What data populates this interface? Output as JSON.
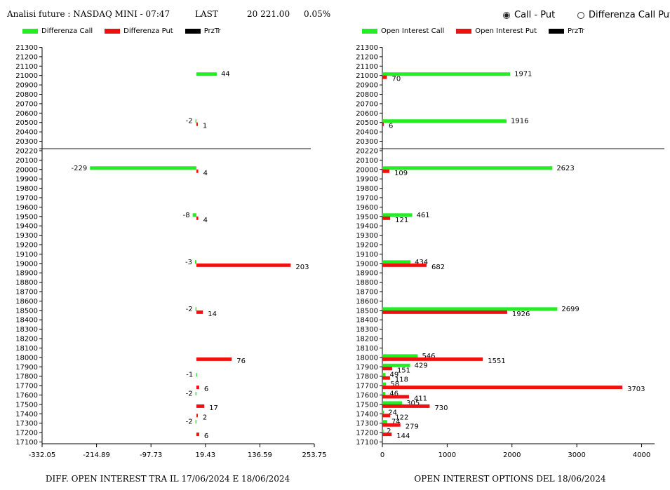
{
  "header": {
    "title": "Analisi future : NASDAQ MINI - 07:47",
    "last_label": "LAST",
    "last_value": "20 221.00",
    "change": "0.05%"
  },
  "radio": {
    "options": [
      {
        "label": "Call - Put",
        "selected": true
      },
      {
        "label": "Differenza Call Put",
        "selected": false
      }
    ]
  },
  "colors": {
    "call": "#22ee22",
    "put": "#ee1111",
    "price": "#000000"
  },
  "chart_data": [
    {
      "type": "bar",
      "orientation": "horizontal",
      "title": "DIFF. OPEN INTEREST TRA IL 17/06/2024 E 18/06/2024",
      "legend": [
        "Differenza Call",
        "Differenza Put",
        "PrzTr"
      ],
      "categories": [
        21300,
        21200,
        21100,
        21000,
        20900,
        20800,
        20700,
        20600,
        20500,
        20400,
        20300,
        20200,
        20100,
        20000,
        19900,
        19800,
        19700,
        19600,
        19500,
        19400,
        19300,
        19200,
        19100,
        19000,
        18900,
        18800,
        18700,
        18600,
        18500,
        18400,
        18300,
        18200,
        18100,
        18000,
        17900,
        17800,
        17700,
        17600,
        17500,
        17400,
        17300,
        17200,
        17100
      ],
      "x_ticks": [
        "-332.05",
        "-214.89",
        "-97.73",
        "19.43",
        "136.59",
        "253.75"
      ],
      "xlim": [
        -332.05,
        253.75
      ],
      "price_level": 20221,
      "price_tick_label": "20220",
      "series": [
        {
          "name": "Differenza Call",
          "points": [
            {
              "strike": 21000,
              "value": 44
            },
            {
              "strike": 20500,
              "value": -2
            },
            {
              "strike": 20000,
              "value": -229
            },
            {
              "strike": 19500,
              "value": -8
            },
            {
              "strike": 19000,
              "value": -3
            },
            {
              "strike": 18500,
              "value": -2
            },
            {
              "strike": 17800,
              "value": -1
            },
            {
              "strike": 17600,
              "value": -2
            },
            {
              "strike": 17300,
              "value": -2
            }
          ]
        },
        {
          "name": "Differenza Put",
          "points": [
            {
              "strike": 20500,
              "value": 1
            },
            {
              "strike": 20000,
              "value": 4
            },
            {
              "strike": 19500,
              "value": 4
            },
            {
              "strike": 19000,
              "value": 203
            },
            {
              "strike": 18500,
              "value": 14
            },
            {
              "strike": 18000,
              "value": 76
            },
            {
              "strike": 17700,
              "value": 6
            },
            {
              "strike": 17500,
              "value": 17
            },
            {
              "strike": 17400,
              "value": 2
            },
            {
              "strike": 17200,
              "value": 6
            }
          ]
        }
      ]
    },
    {
      "type": "bar",
      "orientation": "horizontal",
      "title": "OPEN INTEREST OPTIONS DEL 18/06/2024",
      "legend": [
        "Open Interest Call",
        "Open Interest Put",
        "PrzTr"
      ],
      "categories": [
        21300,
        21200,
        21100,
        21000,
        20900,
        20800,
        20700,
        20600,
        20500,
        20400,
        20300,
        20200,
        20100,
        20000,
        19900,
        19800,
        19700,
        19600,
        19500,
        19400,
        19300,
        19200,
        19100,
        19000,
        18900,
        18800,
        18700,
        18600,
        18500,
        18400,
        18300,
        18200,
        18100,
        18000,
        17900,
        17800,
        17700,
        17600,
        17500,
        17400,
        17300,
        17200,
        17100
      ],
      "x_ticks": [
        "0",
        "1000",
        "2000",
        "3000",
        "4000"
      ],
      "xlim": [
        0,
        4200
      ],
      "price_level": 20221,
      "price_tick_label": "20220",
      "series": [
        {
          "name": "Open Interest Call",
          "points": [
            {
              "strike": 21000,
              "value": 1971
            },
            {
              "strike": 20500,
              "value": 1916
            },
            {
              "strike": 20000,
              "value": 2623
            },
            {
              "strike": 19500,
              "value": 461
            },
            {
              "strike": 19000,
              "value": 434
            },
            {
              "strike": 18500,
              "value": 2699
            },
            {
              "strike": 18000,
              "value": 546
            },
            {
              "strike": 17900,
              "value": 429
            },
            {
              "strike": 17800,
              "value": 49
            },
            {
              "strike": 17700,
              "value": 58
            },
            {
              "strike": 17600,
              "value": 46
            },
            {
              "strike": 17500,
              "value": 305
            },
            {
              "strike": 17400,
              "value": 24
            },
            {
              "strike": 17300,
              "value": 74
            },
            {
              "strike": 17200,
              "value": 2
            }
          ]
        },
        {
          "name": "Open Interest Put",
          "points": [
            {
              "strike": 21000,
              "value": 70
            },
            {
              "strike": 20500,
              "value": 6
            },
            {
              "strike": 20000,
              "value": 109
            },
            {
              "strike": 19500,
              "value": 121
            },
            {
              "strike": 19000,
              "value": 682
            },
            {
              "strike": 18500,
              "value": 1926
            },
            {
              "strike": 18000,
              "value": 1551
            },
            {
              "strike": 17900,
              "value": 151
            },
            {
              "strike": 17800,
              "value": 118
            },
            {
              "strike": 17700,
              "value": 3703
            },
            {
              "strike": 17600,
              "value": 411
            },
            {
              "strike": 17500,
              "value": 730
            },
            {
              "strike": 17400,
              "value": 122
            },
            {
              "strike": 17300,
              "value": 279
            },
            {
              "strike": 17200,
              "value": 144
            }
          ]
        }
      ]
    }
  ]
}
